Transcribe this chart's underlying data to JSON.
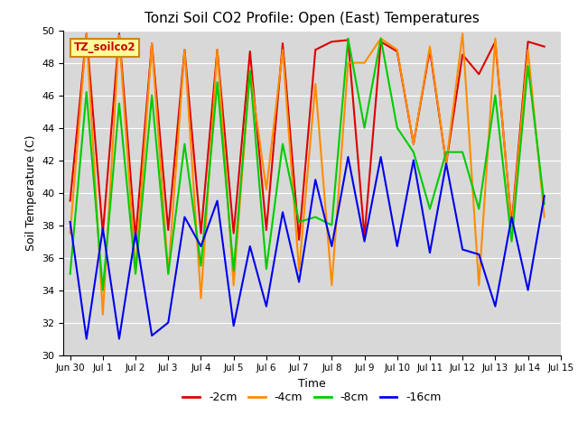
{
  "title": "Tonzi Soil CO2 Profile: Open (East) Temperatures",
  "xlabel": "Time",
  "ylabel": "Soil Temperature (C)",
  "ylim": [
    30,
    50
  ],
  "yticks": [
    30,
    32,
    34,
    36,
    38,
    40,
    42,
    44,
    46,
    48,
    50
  ],
  "legend_label": "TZ_soilco2",
  "bg_color": "#d8d8d8",
  "series": {
    "-2cm": {
      "color": "#dd0000",
      "x": [
        0.0,
        0.5,
        1.0,
        1.5,
        2.0,
        2.5,
        3.0,
        3.5,
        4.0,
        4.5,
        5.0,
        5.5,
        6.0,
        6.5,
        7.0,
        7.5,
        8.0,
        8.5,
        9.0,
        9.5,
        10.0,
        10.5,
        11.0,
        11.5,
        12.0,
        12.5,
        13.0,
        13.5,
        14.0,
        14.5
      ],
      "y": [
        39.5,
        49.8,
        37.5,
        49.8,
        37.2,
        49.2,
        37.7,
        48.8,
        37.5,
        48.8,
        37.5,
        48.7,
        37.7,
        49.2,
        37.1,
        48.8,
        49.3,
        49.4,
        37.3,
        49.3,
        48.7,
        43.0,
        48.8,
        41.8,
        48.5,
        47.3,
        49.3,
        38.0,
        49.3,
        49.0
      ]
    },
    "-4cm": {
      "color": "#ff8c00",
      "x": [
        0.0,
        0.5,
        1.0,
        1.5,
        2.0,
        2.5,
        3.0,
        3.5,
        4.0,
        4.5,
        5.0,
        5.5,
        6.0,
        6.5,
        7.0,
        7.5,
        8.0,
        8.5,
        9.0,
        9.5,
        10.0,
        10.5,
        11.0,
        11.5,
        12.0,
        12.5,
        13.0,
        13.5,
        14.0,
        14.5
      ],
      "y": [
        37.5,
        49.8,
        32.5,
        49.7,
        35.2,
        49.2,
        35.0,
        48.8,
        33.5,
        48.8,
        34.3,
        47.5,
        40.2,
        48.8,
        35.2,
        46.7,
        34.3,
        48.0,
        48.0,
        49.5,
        48.8,
        43.0,
        49.0,
        41.8,
        49.8,
        34.3,
        49.5,
        37.8,
        48.8,
        38.5
      ]
    },
    "-8cm": {
      "color": "#00cc00",
      "x": [
        0.0,
        0.5,
        1.0,
        1.5,
        2.0,
        2.5,
        3.0,
        3.5,
        4.0,
        4.5,
        5.0,
        5.5,
        6.0,
        6.5,
        7.0,
        7.5,
        8.0,
        8.5,
        9.0,
        9.5,
        10.0,
        10.5,
        11.0,
        11.5,
        12.0,
        12.5,
        13.0,
        13.5,
        14.0,
        14.5
      ],
      "y": [
        35.0,
        46.2,
        34.0,
        45.5,
        35.0,
        46.0,
        35.0,
        43.0,
        35.5,
        46.8,
        35.2,
        47.5,
        35.3,
        43.0,
        38.2,
        38.5,
        38.0,
        49.5,
        44.0,
        49.5,
        44.0,
        42.5,
        39.0,
        42.5,
        42.5,
        39.0,
        46.0,
        37.0,
        47.8,
        39.3
      ]
    },
    "-16cm": {
      "color": "#0000ee",
      "x": [
        0.0,
        0.5,
        1.0,
        1.5,
        2.0,
        2.5,
        3.0,
        3.5,
        4.0,
        4.5,
        5.0,
        5.5,
        6.0,
        6.5,
        7.0,
        7.5,
        8.0,
        8.5,
        9.0,
        9.5,
        10.0,
        10.5,
        11.0,
        11.5,
        12.0,
        12.5,
        13.0,
        13.5,
        14.0,
        14.5
      ],
      "y": [
        38.2,
        31.0,
        37.8,
        31.0,
        37.5,
        31.2,
        32.0,
        38.5,
        36.7,
        39.5,
        31.8,
        36.7,
        33.0,
        38.8,
        34.5,
        40.8,
        36.7,
        42.2,
        37.0,
        42.2,
        36.7,
        42.0,
        36.3,
        41.8,
        36.5,
        36.2,
        33.0,
        38.5,
        34.0,
        39.8
      ]
    }
  },
  "xtick_positions": [
    0,
    1,
    2,
    3,
    4,
    5,
    6,
    7,
    8,
    9,
    10,
    11,
    12,
    13,
    14,
    15
  ],
  "xtick_labels": [
    "Jun 30",
    "Jul 1",
    "Jul 2",
    "Jul 3",
    "Jul 4",
    "Jul 5",
    "Jul 6",
    "Jul 7",
    "Jul 8",
    "Jul 9",
    "Jul 10",
    "Jul 11",
    "Jul 12",
    "Jul 13",
    "Jul 14",
    "Jul 15"
  ],
  "legend_items": [
    "-2cm",
    "-4cm",
    "-8cm",
    "-16cm"
  ],
  "legend_colors": [
    "#dd0000",
    "#ff8c00",
    "#00cc00",
    "#0000ee"
  ]
}
